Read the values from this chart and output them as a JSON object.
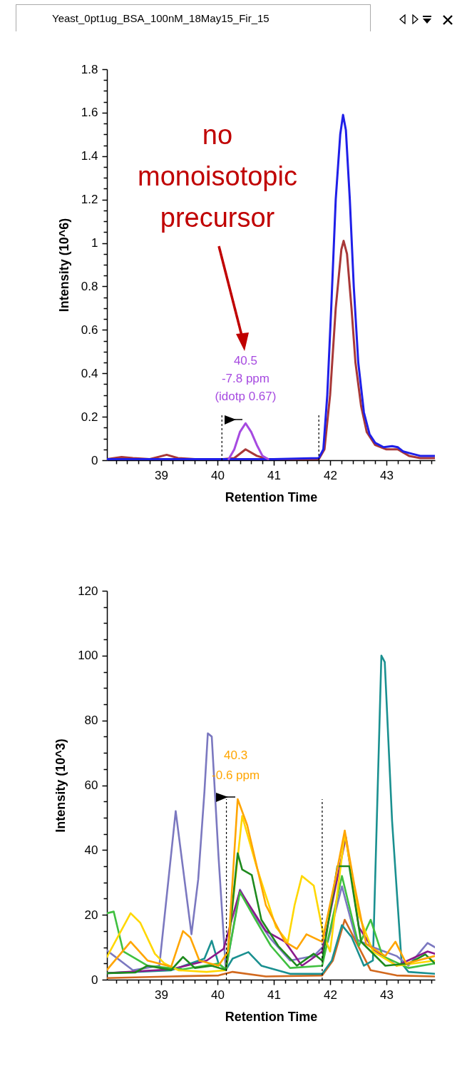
{
  "chart_data": [
    {
      "type": "line",
      "title": "Yeast_0pt1ug_BSA_100nM_18May15_Fir_15",
      "xlabel": "Retention Time",
      "ylabel": "Intensity (10^6)",
      "xlim": [
        38.04,
        43.86
      ],
      "ylim": [
        0,
        1.8
      ],
      "xticks": [
        {
          "value": 38.2,
          "label": null
        },
        {
          "value": 38.4,
          "label": null
        },
        {
          "value": 38.6,
          "label": null
        },
        {
          "value": 38.8,
          "label": null
        },
        39,
        {
          "value": 39.2,
          "label": null
        },
        {
          "value": 39.4,
          "label": null
        },
        {
          "value": 39.6,
          "label": null
        },
        {
          "value": 39.8,
          "label": null
        },
        40,
        {
          "value": 40.2,
          "label": null
        },
        {
          "value": 40.4,
          "label": null
        },
        {
          "value": 40.6,
          "label": null
        },
        {
          "value": 40.8,
          "label": null
        },
        41,
        {
          "value": 41.2,
          "label": null
        },
        {
          "value": 41.4,
          "label": null
        },
        {
          "value": 41.6,
          "label": null
        },
        {
          "value": 41.8,
          "label": null
        },
        42,
        {
          "value": 42.2,
          "label": null
        },
        {
          "value": 42.4,
          "label": null
        },
        {
          "value": 42.6,
          "label": null
        },
        {
          "value": 42.8,
          "label": null
        },
        43,
        {
          "value": 43.2,
          "label": null
        },
        {
          "value": 43.4,
          "label": null
        },
        {
          "value": 43.6,
          "label": null
        },
        {
          "value": 43.8,
          "label": null
        }
      ],
      "yticks": [
        0,
        {
          "value": 0.05,
          "label": null
        },
        {
          "value": 0.1,
          "label": null
        },
        {
          "value": 0.15,
          "label": null
        },
        0.2,
        {
          "value": 0.25,
          "label": null
        },
        {
          "value": 0.3,
          "label": null
        },
        {
          "value": 0.35,
          "label": null
        },
        0.4,
        {
          "value": 0.45,
          "label": null
        },
        {
          "value": 0.5,
          "label": null
        },
        {
          "value": 0.55,
          "label": null
        },
        0.6,
        {
          "value": 0.65,
          "label": null
        },
        {
          "value": 0.7,
          "label": null
        },
        {
          "value": 0.75,
          "label": null
        },
        0.8,
        {
          "value": 0.85,
          "label": null
        },
        {
          "value": 0.9,
          "label": null
        },
        {
          "value": 0.95,
          "label": null
        },
        1,
        {
          "value": 1.05,
          "label": null
        },
        {
          "value": 1.1,
          "label": null
        },
        {
          "value": 1.15,
          "label": null
        },
        1.2,
        {
          "value": 1.25,
          "label": null
        },
        {
          "value": 1.3,
          "label": null
        },
        {
          "value": 1.35,
          "label": null
        },
        1.4,
        {
          "value": 1.45,
          "label": null
        },
        {
          "value": 1.5,
          "label": null
        },
        {
          "value": 1.55,
          "label": null
        },
        1.6,
        {
          "value": 1.65,
          "label": null
        },
        {
          "value": 1.7,
          "label": null
        },
        {
          "value": 1.75,
          "label": null
        },
        1.8
      ],
      "grid": false,
      "series": [
        {
          "color": "#a83838",
          "x": [
            38.04,
            38.3,
            38.5,
            38.8,
            39.1,
            39.3,
            39.6,
            40.1,
            40.3,
            40.5,
            40.7,
            40.9,
            41.8,
            41.9,
            42.0,
            42.1,
            42.2,
            42.24,
            42.3,
            42.38,
            42.45,
            42.55,
            42.65,
            42.8,
            43.0,
            43.2,
            43.4,
            43.6,
            43.86
          ],
          "values": [
            0.005,
            0.015,
            0.01,
            0.005,
            0.025,
            0.01,
            0.005,
            0.005,
            0.01,
            0.05,
            0.02,
            0.005,
            0.005,
            0.05,
            0.3,
            0.7,
            0.97,
            1.01,
            0.95,
            0.7,
            0.45,
            0.25,
            0.13,
            0.07,
            0.05,
            0.05,
            0.02,
            0.01,
            0.01
          ]
        },
        {
          "color": "#1f1fe8",
          "x": [
            38.04,
            39,
            40,
            41,
            41.8,
            41.88,
            41.95,
            42.02,
            42.1,
            42.18,
            42.23,
            42.28,
            42.35,
            42.42,
            42.5,
            42.6,
            42.7,
            42.8,
            42.95,
            43.1,
            43.2,
            43.3,
            43.45,
            43.6,
            43.86
          ],
          "values": [
            0.005,
            0.005,
            0.005,
            0.005,
            0.01,
            0.05,
            0.3,
            0.7,
            1.2,
            1.5,
            1.59,
            1.52,
            1.2,
            0.8,
            0.45,
            0.22,
            0.12,
            0.08,
            0.06,
            0.065,
            0.06,
            0.04,
            0.03,
            0.02,
            0.02
          ]
        },
        {
          "color": "#a64ae0",
          "x": [
            40.2,
            40.3,
            40.4,
            40.5,
            40.6,
            40.7,
            40.8,
            40.9
          ],
          "values": [
            0.005,
            0.05,
            0.13,
            0.17,
            0.13,
            0.07,
            0.02,
            0.005
          ]
        }
      ],
      "ref_lines": [
        {
          "axis": "x",
          "value": 40.08,
          "line_style": "dashed",
          "color": "#000000"
        },
        {
          "axis": "x",
          "value": 41.8,
          "line_style": "dashed",
          "color": "#000000"
        }
      ],
      "annotations": [
        {
          "text": "40.5\n-7.8 ppm\n(idotp 0.67)",
          "x": 40.5,
          "y": 0.17
        },
        "no monoisotopic precursor"
      ]
    },
    {
      "type": "line",
      "xlabel": "Retention Time",
      "ylabel": "Intensity (10^3)",
      "xlim": [
        38.04,
        43.86
      ],
      "ylim": [
        0,
        120
      ],
      "xticks": [
        {
          "value": 38.2,
          "label": null
        },
        {
          "value": 38.4,
          "label": null
        },
        {
          "value": 38.6,
          "label": null
        },
        {
          "value": 38.8,
          "label": null
        },
        39,
        {
          "value": 39.2,
          "label": null
        },
        {
          "value": 39.4,
          "label": null
        },
        {
          "value": 39.6,
          "label": null
        },
        {
          "value": 39.8,
          "label": null
        },
        40,
        {
          "value": 40.2,
          "label": null
        },
        {
          "value": 40.4,
          "label": null
        },
        {
          "value": 40.6,
          "label": null
        },
        {
          "value": 40.8,
          "label": null
        },
        41,
        {
          "value": 41.2,
          "label": null
        },
        {
          "value": 41.4,
          "label": null
        },
        {
          "value": 41.6,
          "label": null
        },
        {
          "value": 41.8,
          "label": null
        },
        42,
        {
          "value": 42.2,
          "label": null
        },
        {
          "value": 42.4,
          "label": null
        },
        {
          "value": 42.6,
          "label": null
        },
        {
          "value": 42.8,
          "label": null
        },
        43,
        {
          "value": 43.2,
          "label": null
        },
        {
          "value": 43.4,
          "label": null
        },
        {
          "value": 43.6,
          "label": null
        },
        {
          "value": 43.8,
          "label": null
        }
      ],
      "yticks": [
        0,
        {
          "value": 5,
          "label": null
        },
        {
          "value": 10,
          "label": null
        },
        {
          "value": 15,
          "label": null
        },
        20,
        {
          "value": 25,
          "label": null
        },
        {
          "value": 30,
          "label": null
        },
        {
          "value": 35,
          "label": null
        },
        40,
        {
          "value": 45,
          "label": null
        },
        {
          "value": 50,
          "label": null
        },
        {
          "value": 55,
          "label": null
        },
        60,
        {
          "value": 65,
          "label": null
        },
        {
          "value": 70,
          "label": null
        },
        {
          "value": 75,
          "label": null
        },
        80,
        {
          "value": 85,
          "label": null
        },
        {
          "value": 90,
          "label": null
        },
        {
          "value": 95,
          "label": null
        },
        100,
        {
          "value": 105,
          "label": null
        },
        {
          "value": 110,
          "label": null
        },
        {
          "value": 115,
          "label": null
        },
        120
      ],
      "grid": false,
      "series": [
        {
          "color": "#d2691e",
          "x": [
            38.04,
            39.18,
            40.02,
            40.27,
            40.86,
            41.86,
            42.05,
            42.26,
            42.46,
            42.72,
            43.18,
            43.86
          ],
          "values": [
            0.5,
            1,
            1.3,
            2.4,
            1,
            1.3,
            5.9,
            18.5,
            11.7,
            2.9,
            1.3,
            1
          ]
        },
        {
          "color": "#1a9090",
          "x": [
            38.04,
            39.18,
            39.77,
            39.9,
            40.02,
            40.15,
            40.27,
            40.55,
            40.78,
            41.29,
            41.86,
            42.03,
            42.21,
            42.38,
            42.6,
            42.76,
            42.91,
            42.97,
            43.1,
            43.27,
            43.39,
            43.86
          ],
          "values": [
            2,
            2.9,
            6.5,
            12,
            5,
            3,
            6.5,
            8.5,
            4.3,
            1.8,
            1.8,
            5.9,
            16.8,
            13.2,
            4.3,
            5.9,
            100,
            98,
            49,
            5,
            2.4,
            1.8
          ]
        },
        {
          "color": "#7b78c0",
          "x": [
            38.04,
            38.5,
            38.97,
            39.26,
            39.54,
            39.66,
            39.77,
            39.83,
            39.9,
            40.02,
            40.15,
            40.4,
            40.65,
            40.95,
            41.29,
            41.71,
            41.96,
            42.21,
            42.46,
            42.76,
            43.18,
            43.39,
            43.73,
            43.86
          ],
          "values": [
            9,
            2.9,
            4.3,
            52,
            14,
            31,
            58,
            76,
            75,
            38,
            2.9,
            27.8,
            20,
            12.5,
            5.9,
            7.3,
            11.7,
            28.8,
            12.5,
            10,
            7.3,
            4.3,
            11.3,
            10
          ]
        },
        {
          "color": "#8b1a8b",
          "x": [
            38.04,
            39.18,
            39.81,
            40.11,
            40.4,
            40.86,
            41.2,
            41.5,
            41.86,
            42.28,
            42.51,
            42.76,
            43.18,
            43.73,
            43.86
          ],
          "values": [
            2,
            3.2,
            5.9,
            9.5,
            27.5,
            15,
            11.7,
            4.3,
            8.7,
            44,
            16.2,
            9.5,
            4.3,
            8.7,
            8
          ]
        },
        {
          "color": "#40c040",
          "x": [
            38.04,
            38.16,
            38.33,
            38.76,
            39.39,
            40.02,
            40.15,
            40.4,
            40.65,
            40.95,
            41.29,
            41.86,
            42.21,
            42.51,
            42.72,
            42.93,
            43.39,
            43.86
          ],
          "values": [
            20.5,
            21,
            8.7,
            4.3,
            3.2,
            5,
            3.2,
            27,
            19.3,
            10.4,
            3.6,
            4.3,
            32,
            10.4,
            18.5,
            7.3,
            3.6,
            5
          ]
        },
        {
          "color": "#ffd700",
          "x": [
            38.04,
            38.46,
            38.63,
            38.89,
            39.06,
            39.31,
            39.81,
            40.15,
            40.27,
            40.44,
            40.7,
            41.04,
            41.25,
            41.37,
            41.5,
            41.71,
            41.88,
            42.0,
            42.26,
            42.51,
            42.76,
            43.18,
            43.86
          ],
          "values": [
            7,
            20.5,
            17.6,
            8,
            5,
            2.9,
            2.4,
            2.9,
            23,
            50.5,
            34.6,
            16.2,
            11.7,
            23,
            32,
            29,
            14,
            8.7,
            45,
            20,
            8.7,
            4.3,
            5.9
          ]
        },
        {
          "color": "#1e8a1e",
          "x": [
            38.04,
            38.54,
            38.76,
            39.18,
            39.39,
            39.6,
            39.9,
            40.15,
            40.36,
            40.44,
            40.61,
            40.78,
            41.08,
            41.41,
            41.71,
            41.86,
            42.13,
            42.34,
            42.55,
            42.98,
            43.39,
            43.69,
            43.86
          ],
          "values": [
            2,
            2.2,
            4.3,
            3,
            7,
            3.6,
            4.3,
            3,
            39,
            34,
            32.3,
            18.5,
            10.4,
            4.3,
            8,
            5.9,
            35,
            35,
            11.7,
            4.3,
            5,
            7.8,
            5
          ]
        },
        {
          "color": "#ffa500",
          "x": [
            38.04,
            38.46,
            38.76,
            39.18,
            39.39,
            39.52,
            39.68,
            40.02,
            40.19,
            40.36,
            40.53,
            40.86,
            41.2,
            41.41,
            41.58,
            41.86,
            42.09,
            42.26,
            42.43,
            42.64,
            42.98,
            43.16,
            43.35,
            43.86
          ],
          "values": [
            3,
            11.7,
            5.9,
            4,
            15,
            13,
            5.9,
            4.3,
            8.7,
            55.7,
            47.6,
            23,
            11.7,
            9.5,
            14,
            11.7,
            30.8,
            46,
            29.3,
            11,
            7.3,
            11.7,
            5,
            7.3
          ]
        }
      ],
      "ref_lines": [
        {
          "axis": "x",
          "value": 40.16,
          "line_style": "dashed",
          "color": "#000000"
        },
        {
          "axis": "x",
          "value": 41.86,
          "line_style": "dashed",
          "color": "#000000"
        }
      ],
      "annotations": [
        {
          "text": "40.3\n-0.6 ppm",
          "x": 40.3,
          "y": 55
        }
      ]
    }
  ]
}
